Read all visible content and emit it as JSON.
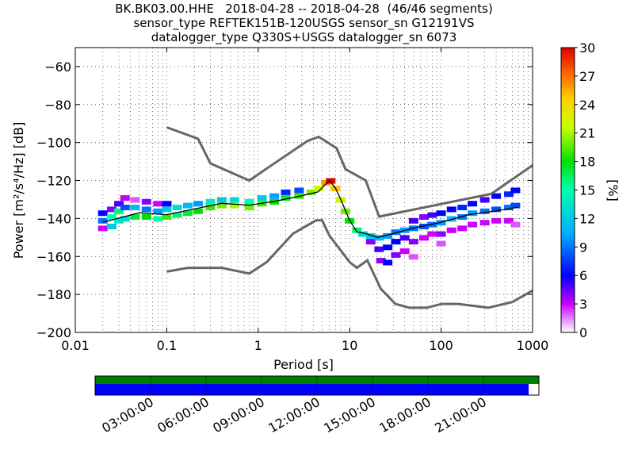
{
  "title": {
    "line1": "BK.BK03.00.HHE   2018-04-28 -- 2018-04-28  (46/46 segments)",
    "line2": "sensor_type REFTEK151B-120USGS sensor_sn G12191VS",
    "line3": "datalogger_type Q330S+USGS datalogger_sn 6073"
  },
  "colors": {
    "noise_model": "#666666",
    "mode_line": "#000000",
    "data_bar": "#0000ff",
    "gap_bar": "#008000"
  },
  "chart_data": {
    "type": "heatmap",
    "x_scale": "log",
    "xlabel": "Period [s]",
    "ylabel": "Power [m²/s⁴/Hz] [dB]",
    "xlim": [
      0.01,
      1000
    ],
    "ylim": [
      -200,
      -50
    ],
    "x_tick_labels": [
      "0.01",
      "0.1",
      "1",
      "10",
      "100",
      "1000"
    ],
    "y_tick_labels": [
      "−60",
      "−80",
      "−100",
      "−120",
      "−140",
      "−160",
      "−180",
      "−200"
    ],
    "y_ticks": [
      -60,
      -80,
      -100,
      -120,
      -140,
      -160,
      -180,
      -200
    ],
    "x_ticks": [
      0.01,
      0.1,
      1,
      10,
      100,
      1000
    ],
    "grid": true,
    "colorbar": {
      "label": "[%]",
      "min": 0,
      "max": 30,
      "tick_labels": [
        "0",
        "3",
        "6",
        "9",
        "12",
        "15",
        "18",
        "21",
        "24",
        "27",
        "30"
      ]
    },
    "noise_model_high": {
      "x": [
        0.1,
        0.22,
        0.3,
        0.8,
        1.3,
        3.5,
        4.6,
        7.2,
        9,
        15,
        21,
        354,
        1000
      ],
      "y": [
        -92,
        -98,
        -111,
        -120,
        -113,
        -99,
        -97,
        -103,
        -114,
        -120,
        -139,
        -127,
        -112
      ]
    },
    "noise_model_low": {
      "x": [
        0.1,
        0.17,
        0.4,
        0.8,
        1.24,
        2.4,
        4.3,
        5,
        6,
        10,
        12,
        15.6,
        21.9,
        31.6,
        45,
        70,
        101,
        154,
        328,
        600,
        1000
      ],
      "y": [
        -168,
        -166,
        -166,
        -169,
        -163,
        -148,
        -141,
        -141,
        -149,
        -163,
        -166,
        -162,
        -177,
        -185,
        -187,
        -187,
        -185,
        -185,
        -187,
        -184,
        -178
      ]
    },
    "mode_line": {
      "x": [
        0.02,
        0.05,
        0.1,
        0.2,
        0.4,
        0.8,
        1.5,
        3,
        4.5,
        6,
        7,
        8,
        10,
        12,
        15,
        20,
        30,
        50,
        100,
        200,
        400,
        700
      ],
      "y": [
        -142,
        -137,
        -138,
        -135,
        -132,
        -133,
        -131,
        -128,
        -126,
        -120,
        -124,
        -130,
        -141,
        -147,
        -148,
        -150,
        -148,
        -145,
        -142,
        -138,
        -136,
        -134
      ]
    },
    "density_cells": [
      {
        "x": 0.02,
        "y": -145,
        "p": 3
      },
      {
        "x": 0.02,
        "y": -141,
        "p": 9
      },
      {
        "x": 0.02,
        "y": -137,
        "p": 6
      },
      {
        "x": 0.025,
        "y": -144,
        "p": 12
      },
      {
        "x": 0.025,
        "y": -139,
        "p": 15
      },
      {
        "x": 0.025,
        "y": -135,
        "p": 4
      },
      {
        "x": 0.03,
        "y": -141,
        "p": 14
      },
      {
        "x": 0.03,
        "y": -136,
        "p": 16
      },
      {
        "x": 0.03,
        "y": -132,
        "p": 5
      },
      {
        "x": 0.035,
        "y": -140,
        "p": 13
      },
      {
        "x": 0.035,
        "y": -134,
        "p": 8
      },
      {
        "x": 0.035,
        "y": -129,
        "p": 3
      },
      {
        "x": 0.045,
        "y": -139,
        "p": 17
      },
      {
        "x": 0.045,
        "y": -134,
        "p": 11
      },
      {
        "x": 0.045,
        "y": -130,
        "p": 2
      },
      {
        "x": 0.06,
        "y": -139,
        "p": 18
      },
      {
        "x": 0.06,
        "y": -135,
        "p": 9
      },
      {
        "x": 0.06,
        "y": -131,
        "p": 4
      },
      {
        "x": 0.08,
        "y": -140,
        "p": 15
      },
      {
        "x": 0.08,
        "y": -136,
        "p": 10
      },
      {
        "x": 0.08,
        "y": -132,
        "p": 3
      },
      {
        "x": 0.1,
        "y": -139,
        "p": 19
      },
      {
        "x": 0.1,
        "y": -135,
        "p": 12
      },
      {
        "x": 0.1,
        "y": -132,
        "p": 6
      },
      {
        "x": 0.13,
        "y": -138,
        "p": 16
      },
      {
        "x": 0.13,
        "y": -134,
        "p": 13
      },
      {
        "x": 0.17,
        "y": -137,
        "p": 17
      },
      {
        "x": 0.17,
        "y": -133,
        "p": 11
      },
      {
        "x": 0.22,
        "y": -136,
        "p": 18
      },
      {
        "x": 0.22,
        "y": -132,
        "p": 10
      },
      {
        "x": 0.3,
        "y": -134,
        "p": 19
      },
      {
        "x": 0.3,
        "y": -131,
        "p": 14
      },
      {
        "x": 0.4,
        "y": -133,
        "p": 20
      },
      {
        "x": 0.4,
        "y": -130,
        "p": 12
      },
      {
        "x": 0.55,
        "y": -133,
        "p": 21
      },
      {
        "x": 0.55,
        "y": -130,
        "p": 13
      },
      {
        "x": 0.8,
        "y": -134,
        "p": 20
      },
      {
        "x": 0.8,
        "y": -131,
        "p": 15
      },
      {
        "x": 1.1,
        "y": -132,
        "p": 19
      },
      {
        "x": 1.1,
        "y": -129,
        "p": 12
      },
      {
        "x": 1.5,
        "y": -131,
        "p": 18
      },
      {
        "x": 1.5,
        "y": -128,
        "p": 10
      },
      {
        "x": 2.0,
        "y": -129,
        "p": 17
      },
      {
        "x": 2.0,
        "y": -126,
        "p": 7
      },
      {
        "x": 2.8,
        "y": -128,
        "p": 19
      },
      {
        "x": 2.8,
        "y": -125,
        "p": 8
      },
      {
        "x": 3.8,
        "y": -126,
        "p": 20
      },
      {
        "x": 4.6,
        "y": -124,
        "p": 22
      },
      {
        "x": 5.5,
        "y": -121,
        "p": 26
      },
      {
        "x": 6.2,
        "y": -120,
        "p": 30
      },
      {
        "x": 7.0,
        "y": -124,
        "p": 25
      },
      {
        "x": 8.0,
        "y": -130,
        "p": 22
      },
      {
        "x": 9.0,
        "y": -136,
        "p": 20
      },
      {
        "x": 10.0,
        "y": -141,
        "p": 18
      },
      {
        "x": 12.0,
        "y": -146,
        "p": 16
      },
      {
        "x": 14.0,
        "y": -148,
        "p": 13
      },
      {
        "x": 17.0,
        "y": -149,
        "p": 12
      },
      {
        "x": 17.0,
        "y": -152,
        "p": 4
      },
      {
        "x": 21.0,
        "y": -150,
        "p": 11
      },
      {
        "x": 21.0,
        "y": -156,
        "p": 5
      },
      {
        "x": 22.0,
        "y": -162,
        "p": 4
      },
      {
        "x": 26.0,
        "y": -149,
        "p": 10
      },
      {
        "x": 26.0,
        "y": -155,
        "p": 6
      },
      {
        "x": 26.0,
        "y": -163,
        "p": 6
      },
      {
        "x": 32.0,
        "y": -147,
        "p": 9
      },
      {
        "x": 32.0,
        "y": -152,
        "p": 6
      },
      {
        "x": 32.0,
        "y": -159,
        "p": 4
      },
      {
        "x": 40.0,
        "y": -146,
        "p": 10
      },
      {
        "x": 40.0,
        "y": -150,
        "p": 5
      },
      {
        "x": 40.0,
        "y": -157,
        "p": 3
      },
      {
        "x": 50.0,
        "y": -145,
        "p": 9
      },
      {
        "x": 50.0,
        "y": -141,
        "p": 5
      },
      {
        "x": 50.0,
        "y": -152,
        "p": 4
      },
      {
        "x": 50.0,
        "y": -160,
        "p": 2
      },
      {
        "x": 65.0,
        "y": -144,
        "p": 8
      },
      {
        "x": 65.0,
        "y": -139,
        "p": 4
      },
      {
        "x": 65.0,
        "y": -150,
        "p": 3
      },
      {
        "x": 80.0,
        "y": -143,
        "p": 9
      },
      {
        "x": 80.0,
        "y": -138,
        "p": 5
      },
      {
        "x": 80.0,
        "y": -148,
        "p": 3
      },
      {
        "x": 100.0,
        "y": -142,
        "p": 10
      },
      {
        "x": 100.0,
        "y": -137,
        "p": 6
      },
      {
        "x": 100.0,
        "y": -148,
        "p": 4
      },
      {
        "x": 100.0,
        "y": -153,
        "p": 2
      },
      {
        "x": 130.0,
        "y": -140,
        "p": 11
      },
      {
        "x": 130.0,
        "y": -135,
        "p": 6
      },
      {
        "x": 130.0,
        "y": -146,
        "p": 3
      },
      {
        "x": 170.0,
        "y": -139,
        "p": 9
      },
      {
        "x": 170.0,
        "y": -134,
        "p": 7
      },
      {
        "x": 170.0,
        "y": -145,
        "p": 3
      },
      {
        "x": 220.0,
        "y": -137,
        "p": 10
      },
      {
        "x": 220.0,
        "y": -132,
        "p": 6
      },
      {
        "x": 220.0,
        "y": -143,
        "p": 3
      },
      {
        "x": 300.0,
        "y": -136,
        "p": 9
      },
      {
        "x": 300.0,
        "y": -130,
        "p": 5
      },
      {
        "x": 300.0,
        "y": -142,
        "p": 3
      },
      {
        "x": 400.0,
        "y": -135,
        "p": 8
      },
      {
        "x": 400.0,
        "y": -128,
        "p": 6
      },
      {
        "x": 400.0,
        "y": -141,
        "p": 3
      },
      {
        "x": 550.0,
        "y": -134,
        "p": 9
      },
      {
        "x": 550.0,
        "y": -127,
        "p": 7
      },
      {
        "x": 550.0,
        "y": -141,
        "p": 3
      },
      {
        "x": 650.0,
        "y": -133,
        "p": 8
      },
      {
        "x": 650.0,
        "y": -125,
        "p": 6
      },
      {
        "x": 650.0,
        "y": -143,
        "p": 2
      }
    ],
    "timeline": {
      "tick_labels": [
        "03:00:00",
        "06:00:00",
        "09:00:00",
        "12:00:00",
        "15:00:00",
        "18:00:00",
        "21:00:00"
      ],
      "data_coverage_fraction": 0.977
    }
  }
}
